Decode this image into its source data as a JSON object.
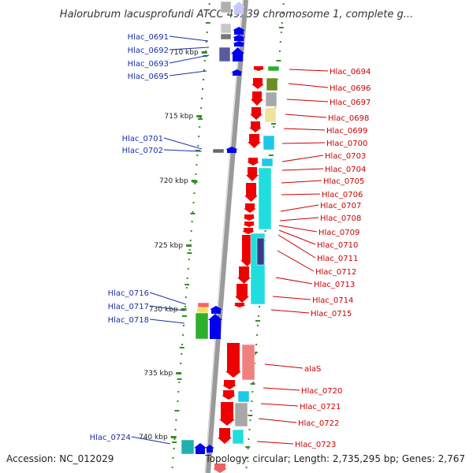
{
  "title": "Halorubrum lacusprofundi ATCC 49239 chromosome 1, complete g...",
  "accession": "Accession: NC_012029",
  "summary": "Topology: circular; Length: 2,735,295 bp; Genes: 2,767",
  "colors": {
    "forward_strand": "#0000ee",
    "reverse_strand": "#ee0000",
    "left_label": "#1a2fa8",
    "right_label": "#cc0000",
    "backbone": "#999999",
    "tick": "#3a8a2a"
  },
  "scale_ticks": [
    {
      "label": "710 kbp",
      "kbp": 710
    },
    {
      "label": "715 kbp",
      "kbp": 715
    },
    {
      "label": "720 kbp",
      "kbp": 720
    },
    {
      "label": "725 kbp",
      "kbp": 725
    },
    {
      "label": "730 kbp",
      "kbp": 730
    },
    {
      "label": "735 kbp",
      "kbp": 735
    },
    {
      "label": "740 kbp",
      "kbp": 740
    }
  ],
  "left_genes": [
    {
      "label": "Hlac_0691",
      "strand": "+"
    },
    {
      "label": "Hlac_0692",
      "strand": "+"
    },
    {
      "label": "Hlac_0693",
      "strand": "+"
    },
    {
      "label": "Hlac_0695",
      "strand": "+"
    },
    {
      "label": "Hlac_0701",
      "strand": "+"
    },
    {
      "label": "Hlac_0702",
      "strand": "+"
    },
    {
      "label": "Hlac_0716",
      "strand": "+"
    },
    {
      "label": "Hlac_0717",
      "strand": "+"
    },
    {
      "label": "Hlac_0718",
      "strand": "+"
    },
    {
      "label": "Hlac_0724",
      "strand": "+"
    }
  ],
  "right_genes": [
    {
      "label": "Hlac_0694",
      "strand": "-"
    },
    {
      "label": "Hlac_0696",
      "strand": "-"
    },
    {
      "label": "Hlac_0697",
      "strand": "-"
    },
    {
      "label": "Hlac_0698",
      "strand": "-"
    },
    {
      "label": "Hlac_0699",
      "strand": "-"
    },
    {
      "label": "Hlac_0700",
      "strand": "-"
    },
    {
      "label": "Hlac_0703",
      "strand": "-"
    },
    {
      "label": "Hlac_0704",
      "strand": "-"
    },
    {
      "label": "Hlac_0705",
      "strand": "-"
    },
    {
      "label": "Hlac_0706",
      "strand": "-"
    },
    {
      "label": "Hlac_0707",
      "strand": "-"
    },
    {
      "label": "Hlac_0708",
      "strand": "-"
    },
    {
      "label": "Hlac_0709",
      "strand": "-"
    },
    {
      "label": "Hlac_0710",
      "strand": "-"
    },
    {
      "label": "Hlac_0711",
      "strand": "-"
    },
    {
      "label": "Hlac_0712",
      "strand": "-"
    },
    {
      "label": "Hlac_0713",
      "strand": "-"
    },
    {
      "label": "Hlac_0714",
      "strand": "-"
    },
    {
      "label": "Hlac_0715",
      "strand": "-"
    },
    {
      "label": "alaS",
      "strand": "-"
    },
    {
      "label": "Hlac_0720",
      "strand": "-"
    },
    {
      "label": "Hlac_0721",
      "strand": "-"
    },
    {
      "label": "Hlac_0722",
      "strand": "-"
    },
    {
      "label": "Hlac_0723",
      "strand": "-"
    }
  ]
}
